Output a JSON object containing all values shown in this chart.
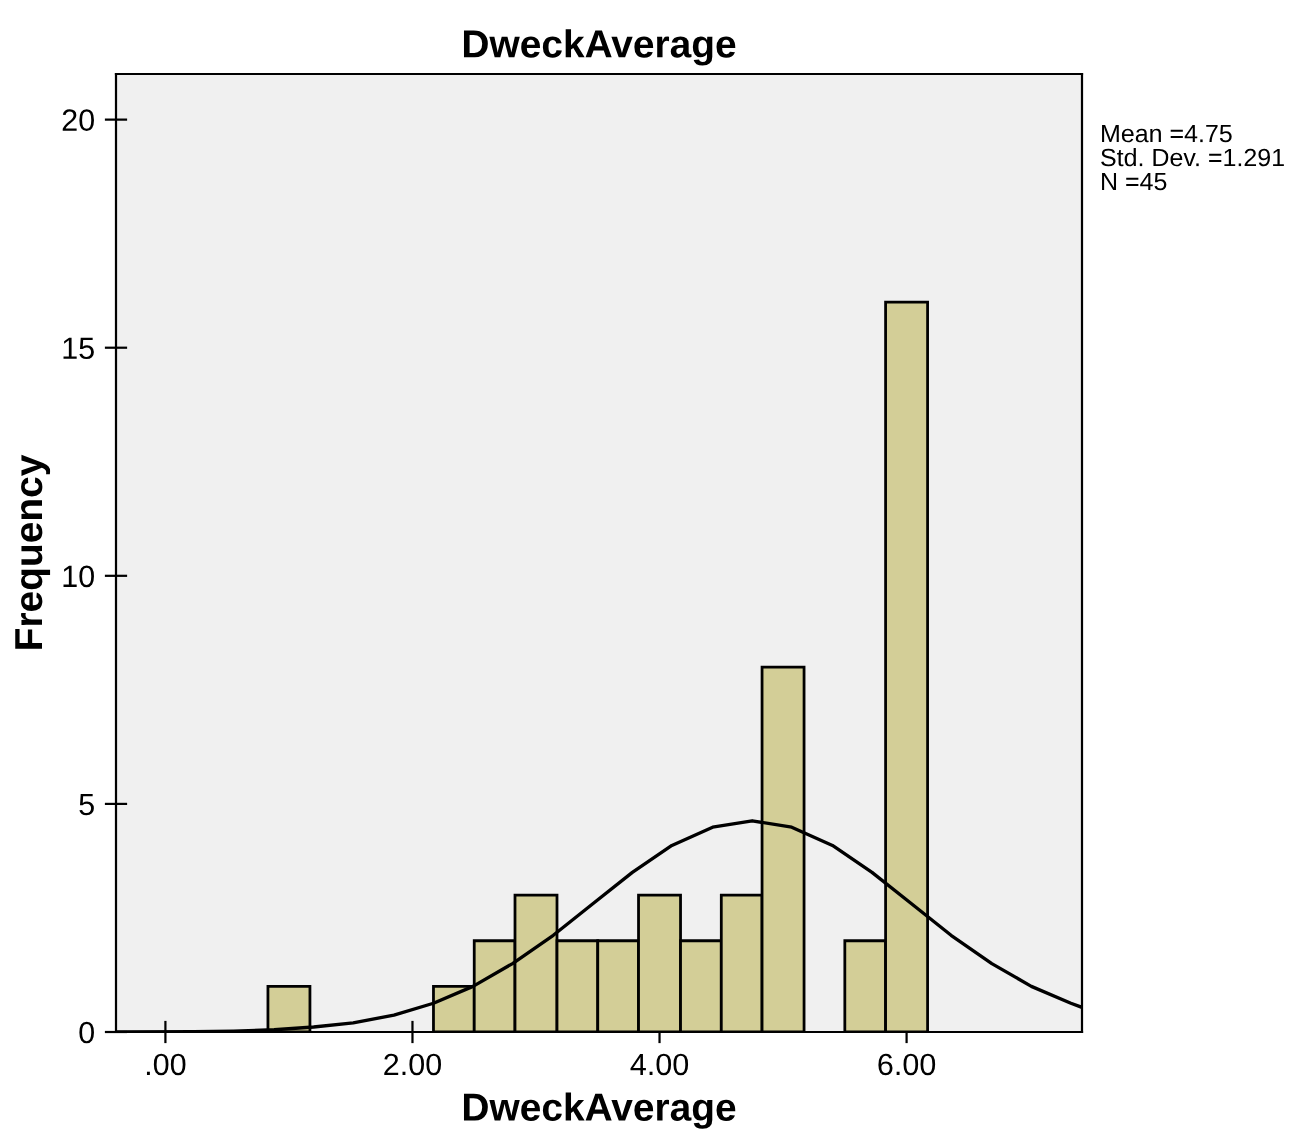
{
  "chart_data": {
    "type": "histogram",
    "title": "DweckAverage",
    "xlabel": "DweckAverage",
    "ylabel": "Frequency",
    "bins": [
      0.83,
      1.17,
      2.17,
      2.5,
      2.83,
      3.17,
      3.5,
      3.83,
      4.17,
      4.5,
      4.83,
      5.17,
      5.5,
      5.83,
      6.17
    ],
    "values": [
      1,
      0,
      1,
      2,
      3,
      2,
      2,
      3,
      2,
      3,
      8,
      0,
      2,
      16
    ],
    "color": "#d3ce97",
    "series": [
      {
        "type": "line",
        "color": "#000000",
        "x": [
          -0.4,
          0.23,
          0.55,
          0.88,
          1.2,
          1.52,
          1.85,
          2.17,
          2.49,
          2.81,
          3.14,
          3.46,
          3.78,
          4.1,
          4.43,
          4.75,
          5.07,
          5.4,
          5.72,
          6.04,
          6.36,
          6.69,
          7.01,
          7.33,
          7.42
        ],
        "values": [
          0.0,
          0.01,
          0.02,
          0.05,
          0.11,
          0.2,
          0.37,
          0.63,
          1.0,
          1.5,
          2.12,
          2.81,
          3.5,
          4.09,
          4.49,
          4.63,
          4.49,
          4.09,
          3.5,
          2.81,
          2.12,
          1.5,
          1.0,
          0.63,
          0.54
        ]
      }
    ],
    "xlim": [
      -0.4,
      7.42
    ],
    "ylim": [
      0,
      21
    ],
    "xticks": [
      {
        "value": 0,
        "label": ".00"
      },
      {
        "value": 2,
        "label": "2.00"
      },
      {
        "value": 4,
        "label": "4.00"
      },
      {
        "value": 6,
        "label": "6.00"
      }
    ],
    "yticks": [
      0,
      5,
      10,
      15,
      20
    ],
    "grid": false,
    "legend": false,
    "annotations": [
      "Mean =4.75",
      "Std. Dev. =1.291",
      "N =45"
    ]
  }
}
